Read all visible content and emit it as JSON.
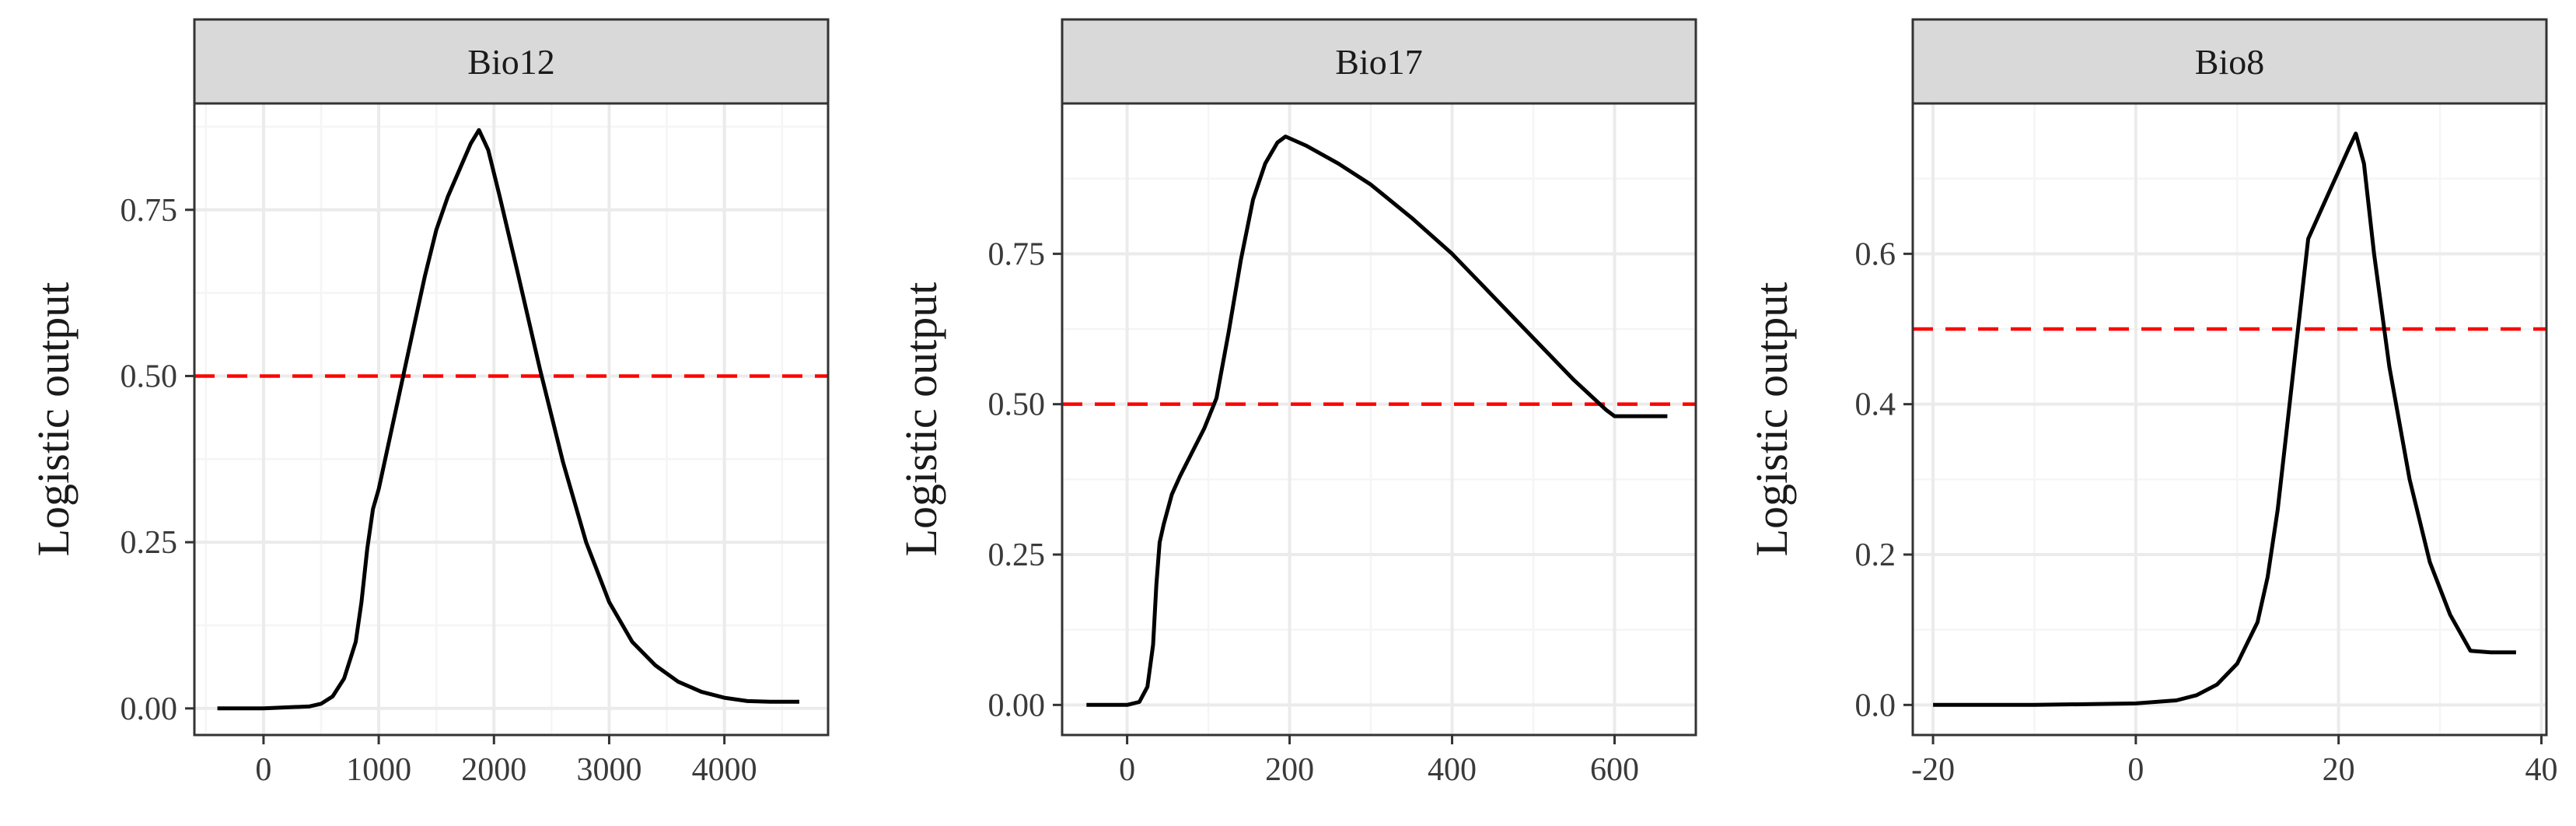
{
  "figure": {
    "threshold": 0.5,
    "colors": {
      "curve": "#000000",
      "threshold": "#ff0000",
      "strip": "#d9d9d9",
      "grid_major": "#ebebeb",
      "grid_minor": "#f5f5f5",
      "panel_border": "#333333"
    }
  },
  "chart_data": [
    {
      "type": "line",
      "title": "Bio12",
      "xlabel": "",
      "ylabel": "Logistic output",
      "xlim": [
        -600,
        4900
      ],
      "ylim": [
        -0.04,
        0.91
      ],
      "xticks": [
        0,
        1000,
        2000,
        3000,
        4000
      ],
      "xtick_labels": [
        "0",
        "1000",
        "2000",
        "3000",
        "4000"
      ],
      "yticks": [
        0,
        0.25,
        0.5,
        0.75
      ],
      "ytick_labels": [
        "0.00",
        "0.25",
        "0.50",
        "0.75"
      ],
      "grid": true,
      "reference_line": {
        "y": 0.5,
        "style": "dashed"
      },
      "x": [
        -400,
        0,
        400,
        500,
        600,
        700,
        800,
        850,
        900,
        950,
        1000,
        1100,
        1200,
        1300,
        1400,
        1500,
        1600,
        1700,
        1800,
        1870,
        1950,
        2050,
        2200,
        2400,
        2600,
        2800,
        3000,
        3200,
        3400,
        3600,
        3800,
        4000,
        4200,
        4400,
        4650
      ],
      "y": [
        0.0,
        0.0,
        0.003,
        0.007,
        0.018,
        0.045,
        0.1,
        0.16,
        0.24,
        0.3,
        0.33,
        0.41,
        0.49,
        0.57,
        0.65,
        0.72,
        0.77,
        0.81,
        0.85,
        0.87,
        0.84,
        0.77,
        0.66,
        0.51,
        0.37,
        0.25,
        0.16,
        0.1,
        0.065,
        0.04,
        0.025,
        0.016,
        0.011,
        0.01,
        0.01
      ]
    },
    {
      "type": "line",
      "title": "Bio17",
      "xlabel": "",
      "ylabel": "Logistic output",
      "xlim": [
        -80,
        700
      ],
      "ylim": [
        -0.05,
        1.0
      ],
      "xticks": [
        0,
        200,
        400,
        600
      ],
      "xtick_labels": [
        "0",
        "200",
        "400",
        "600"
      ],
      "yticks": [
        0,
        0.25,
        0.5,
        0.75
      ],
      "ytick_labels": [
        "0.00",
        "0.25",
        "0.50",
        "0.75"
      ],
      "grid": true,
      "reference_line": {
        "y": 0.5,
        "style": "dashed"
      },
      "x": [
        -50,
        0,
        15,
        25,
        32,
        36,
        40,
        45,
        55,
        65,
        80,
        95,
        110,
        125,
        140,
        155,
        170,
        185,
        195,
        220,
        260,
        300,
        350,
        400,
        450,
        500,
        550,
        590,
        600,
        620,
        665
      ],
      "y": [
        0.0,
        0.0,
        0.005,
        0.03,
        0.1,
        0.2,
        0.27,
        0.3,
        0.35,
        0.38,
        0.42,
        0.46,
        0.51,
        0.62,
        0.74,
        0.84,
        0.9,
        0.935,
        0.945,
        0.93,
        0.9,
        0.865,
        0.81,
        0.75,
        0.68,
        0.61,
        0.54,
        0.49,
        0.48,
        0.48,
        0.48
      ]
    },
    {
      "type": "line",
      "title": "Bio8",
      "xlabel": "",
      "ylabel": "Logistic output",
      "xlim": [
        -22,
        40.5
      ],
      "ylim": [
        -0.04,
        0.8
      ],
      "xticks": [
        -20,
        0,
        20,
        40
      ],
      "xtick_labels": [
        "-20",
        "0",
        "20",
        "40"
      ],
      "yticks": [
        0,
        0.2,
        0.4,
        0.6
      ],
      "ytick_labels": [
        "0.0",
        "0.2",
        "0.4",
        "0.6"
      ],
      "grid": true,
      "reference_line": {
        "y": 0.5,
        "style": "dashed"
      },
      "x": [
        -20,
        -10,
        0,
        4,
        6,
        8,
        10,
        12,
        13,
        14,
        15,
        16,
        17,
        18,
        19,
        20,
        21,
        21.7,
        22.5,
        23.5,
        25,
        27,
        29,
        31,
        33,
        35,
        37.5
      ],
      "y": [
        0.0,
        0.0,
        0.002,
        0.006,
        0.013,
        0.027,
        0.055,
        0.11,
        0.17,
        0.26,
        0.38,
        0.5,
        0.62,
        0.65,
        0.68,
        0.71,
        0.74,
        0.76,
        0.72,
        0.6,
        0.45,
        0.3,
        0.19,
        0.12,
        0.072,
        0.07,
        0.07
      ]
    }
  ]
}
